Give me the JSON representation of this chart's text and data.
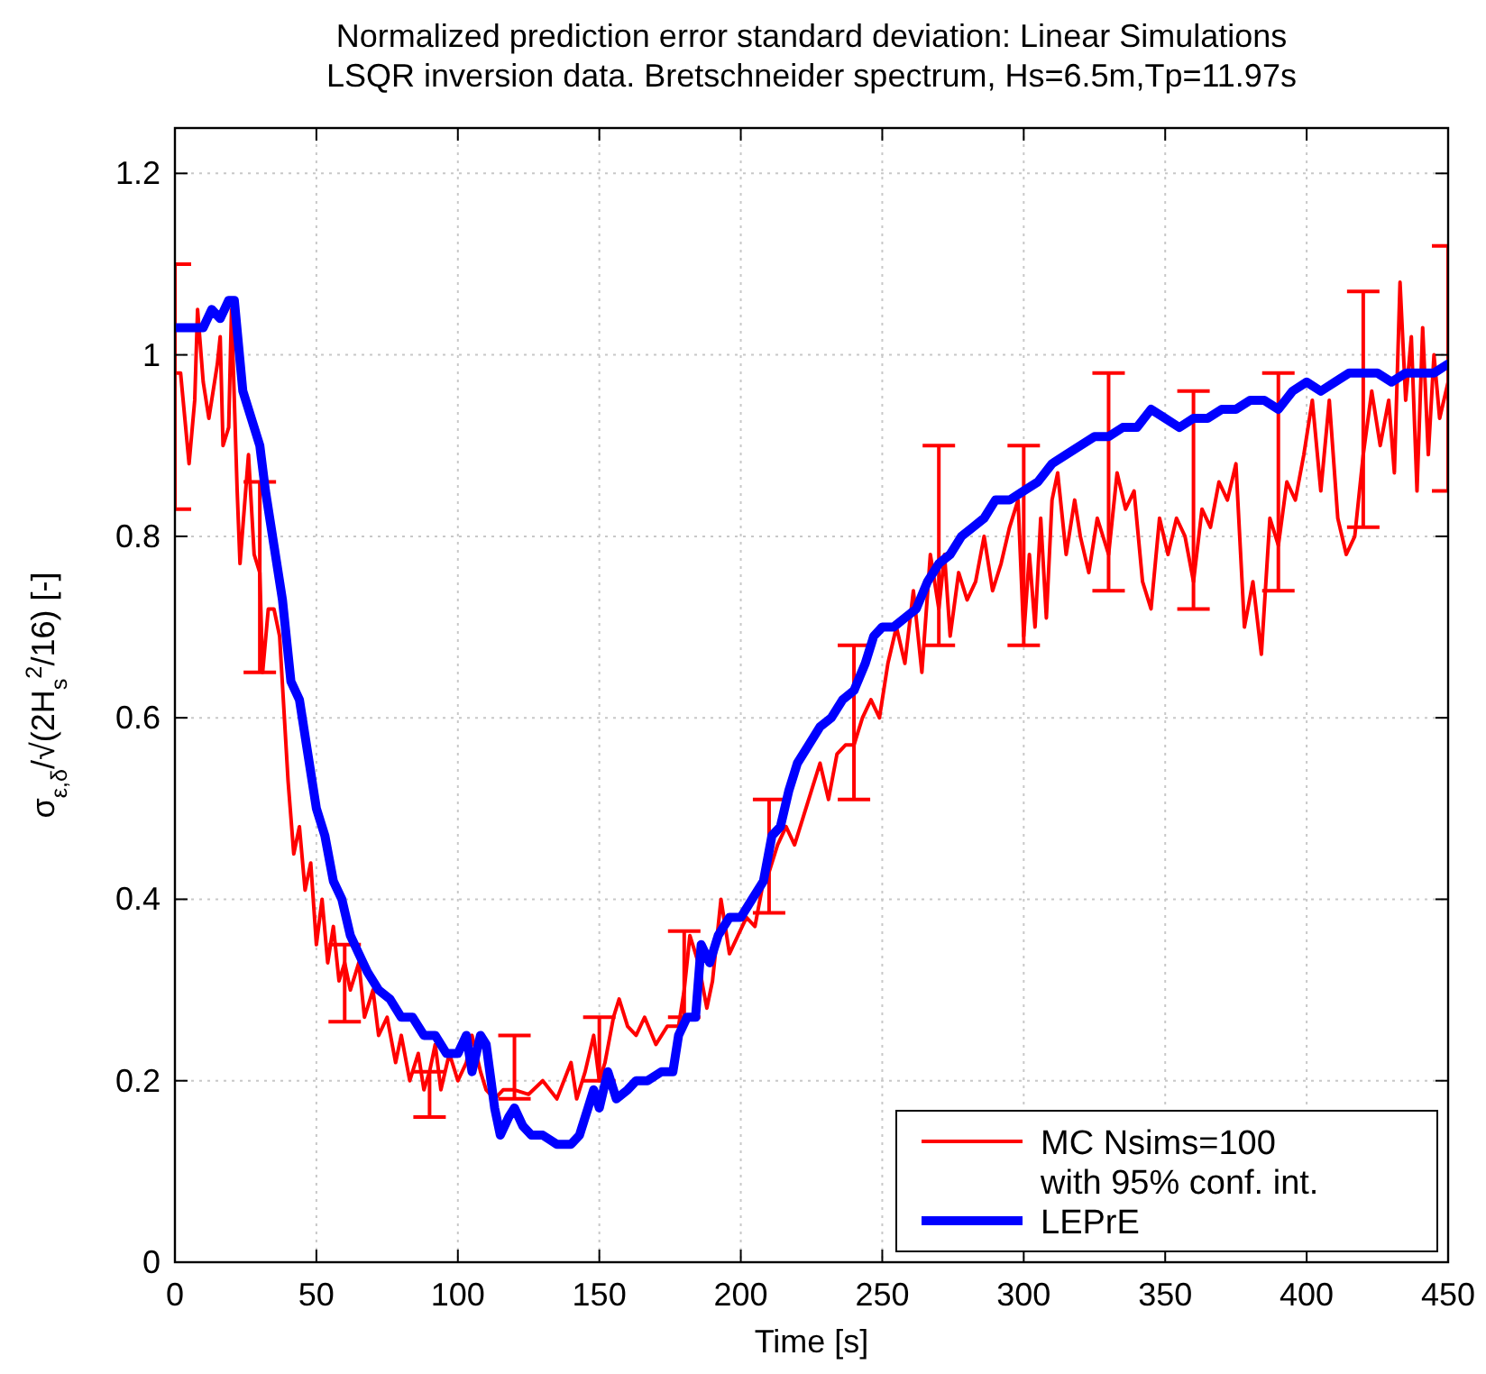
{
  "chart_data": {
    "type": "line",
    "title": "Normalized prediction error standard deviation: Linear Simulations\nLSQR inversion data. Bretschneider spectrum, Hs=6.5m,Tp=11.97s",
    "xlabel": "Time [s]",
    "ylabel": "σ$_{ε,δ}$/√(2H$_{s}$$^{2}$/16) [-]",
    "xlim": [
      0,
      450
    ],
    "ylim": [
      0,
      1.25
    ],
    "xticks": [
      0,
      50,
      100,
      150,
      200,
      250,
      300,
      350,
      400,
      450
    ],
    "yticks": [
      0,
      0.2,
      0.4,
      0.6,
      0.8,
      1,
      1.2
    ],
    "grid": true,
    "legend": "bottom right",
    "series": [
      {
        "name": "MC Nsims=100\nwith 95% conf. int.",
        "color": "#ff0000",
        "line_style": "solid",
        "x": [
          0,
          2,
          5,
          7,
          8,
          10,
          12,
          15,
          16,
          17,
          19,
          20,
          22,
          23,
          26,
          28,
          30,
          31,
          33,
          35,
          37,
          40,
          42,
          44,
          46,
          48,
          50,
          52,
          54,
          56,
          58,
          60,
          62,
          65,
          67,
          70,
          72,
          75,
          78,
          80,
          83,
          86,
          88,
          90,
          92,
          94,
          97,
          100,
          103,
          105,
          108,
          110,
          113,
          116,
          120,
          125,
          130,
          135,
          140,
          142,
          145,
          148,
          150,
          152,
          155,
          157,
          160,
          163,
          166,
          170,
          174,
          178,
          180,
          182,
          185,
          188,
          190,
          193,
          196,
          199,
          202,
          205,
          208,
          210,
          213,
          216,
          219,
          222,
          225,
          228,
          231,
          234,
          237,
          240,
          243,
          246,
          249,
          252,
          255,
          258,
          261,
          264,
          267,
          270,
          272,
          274,
          277,
          280,
          283,
          286,
          289,
          292,
          295,
          298,
          300,
          302,
          304,
          306,
          308,
          310,
          312,
          315,
          318,
          320,
          323,
          326,
          330,
          333,
          336,
          339,
          342,
          345,
          348,
          351,
          354,
          357,
          360,
          363,
          366,
          369,
          372,
          375,
          378,
          381,
          384,
          387,
          390,
          393,
          396,
          399,
          402,
          405,
          408,
          411,
          414,
          417,
          420,
          423,
          426,
          429,
          431,
          433,
          435,
          437,
          439,
          441,
          443,
          445,
          447,
          450
        ],
        "values": [
          0.98,
          0.98,
          0.88,
          0.95,
          1.05,
          0.97,
          0.93,
          0.99,
          1.02,
          0.9,
          0.92,
          1.05,
          0.85,
          0.77,
          0.89,
          0.78,
          0.76,
          0.65,
          0.72,
          0.72,
          0.69,
          0.53,
          0.45,
          0.48,
          0.41,
          0.44,
          0.35,
          0.4,
          0.33,
          0.37,
          0.31,
          0.33,
          0.3,
          0.33,
          0.27,
          0.3,
          0.25,
          0.27,
          0.22,
          0.25,
          0.2,
          0.23,
          0.19,
          0.21,
          0.24,
          0.19,
          0.23,
          0.2,
          0.22,
          0.25,
          0.21,
          0.19,
          0.18,
          0.19,
          0.19,
          0.185,
          0.2,
          0.18,
          0.22,
          0.18,
          0.21,
          0.25,
          0.2,
          0.22,
          0.27,
          0.29,
          0.26,
          0.25,
          0.27,
          0.24,
          0.26,
          0.26,
          0.3,
          0.36,
          0.33,
          0.28,
          0.31,
          0.4,
          0.34,
          0.36,
          0.38,
          0.37,
          0.42,
          0.43,
          0.46,
          0.48,
          0.46,
          0.49,
          0.52,
          0.55,
          0.51,
          0.56,
          0.57,
          0.57,
          0.6,
          0.62,
          0.6,
          0.66,
          0.7,
          0.66,
          0.74,
          0.65,
          0.78,
          0.72,
          0.78,
          0.69,
          0.76,
          0.73,
          0.75,
          0.8,
          0.74,
          0.77,
          0.81,
          0.84,
          0.69,
          0.78,
          0.7,
          0.82,
          0.71,
          0.84,
          0.87,
          0.78,
          0.84,
          0.8,
          0.76,
          0.82,
          0.78,
          0.87,
          0.83,
          0.85,
          0.75,
          0.72,
          0.82,
          0.78,
          0.82,
          0.8,
          0.75,
          0.83,
          0.81,
          0.86,
          0.84,
          0.88,
          0.7,
          0.75,
          0.67,
          0.82,
          0.79,
          0.86,
          0.84,
          0.89,
          0.95,
          0.85,
          0.95,
          0.82,
          0.78,
          0.8,
          0.89,
          0.96,
          0.9,
          0.95,
          0.87,
          1.08,
          0.95,
          1.02,
          0.85,
          1.03,
          0.89,
          1,
          0.93,
          0.97
        ],
        "errors": [
          [
            0.83,
            1.1
          ],
          null,
          null,
          null,
          null,
          null,
          null,
          null,
          null,
          null,
          null,
          null,
          null,
          null,
          null,
          null,
          [
            0.65,
            0.86
          ],
          null,
          null,
          null,
          null,
          null,
          null,
          null,
          null,
          null,
          null,
          null,
          null,
          null,
          null,
          [
            0.265,
            0.35
          ],
          null,
          null,
          null,
          null,
          null,
          null,
          null,
          null,
          null,
          null,
          null,
          [
            0.16,
            0.21
          ],
          null,
          null,
          null,
          null,
          null,
          null,
          null,
          null,
          null,
          null,
          [
            0.18,
            0.25
          ],
          null,
          null,
          null,
          null,
          null,
          null,
          null,
          [
            0.2,
            0.27
          ],
          null,
          null,
          null,
          null,
          null,
          null,
          null,
          null,
          null,
          [
            0.27,
            0.365
          ],
          null,
          null,
          null,
          null,
          null,
          null,
          null,
          null,
          null,
          null,
          [
            0.385,
            0.51
          ],
          null,
          null,
          null,
          null,
          null,
          null,
          null,
          null,
          null,
          [
            0.51,
            0.68
          ],
          null,
          null,
          null,
          null,
          null,
          null,
          null,
          null,
          null,
          [
            0.68,
            0.9
          ],
          null,
          null,
          null,
          null,
          null,
          null,
          null,
          null,
          null,
          null,
          [
            0.68,
            0.9
          ],
          null,
          null,
          null,
          null,
          null,
          null,
          null,
          null,
          null,
          null,
          null,
          [
            0.74,
            0.98
          ],
          null,
          null,
          null,
          null,
          null,
          null,
          null,
          null,
          null,
          [
            0.72,
            0.96
          ],
          null,
          null,
          null,
          null,
          null,
          null,
          null,
          null,
          null,
          [
            0.74,
            0.98
          ],
          null,
          null,
          null,
          null,
          null,
          null,
          null,
          null,
          null,
          [
            0.81,
            1.07
          ],
          null,
          null,
          null,
          null,
          null,
          null,
          null,
          null,
          null,
          null,
          null,
          null,
          [
            0.85,
            1.12
          ]
        ]
      },
      {
        "name": "LEPrE",
        "color": "#0000ff",
        "line_style": "solid",
        "x": [
          0,
          10,
          13,
          16,
          19,
          21,
          24,
          27,
          30,
          32,
          35,
          38,
          41,
          44,
          47,
          50,
          53,
          56,
          59,
          62,
          65,
          68,
          72,
          76,
          80,
          84,
          88,
          92,
          96,
          100,
          103,
          105,
          108,
          110,
          113,
          115,
          118,
          120,
          123,
          126,
          130,
          135,
          140,
          143,
          146,
          148,
          150,
          153,
          156,
          160,
          163,
          167,
          172,
          176,
          178,
          181,
          184,
          186,
          189,
          192,
          196,
          200,
          204,
          208,
          211,
          214,
          217,
          220,
          224,
          228,
          232,
          236,
          240,
          244,
          247,
          250,
          254,
          258,
          262,
          266,
          270,
          274,
          278,
          282,
          286,
          290,
          295,
          300,
          305,
          310,
          315,
          320,
          325,
          330,
          335,
          340,
          345,
          350,
          355,
          360,
          365,
          370,
          375,
          380,
          385,
          390,
          395,
          400,
          405,
          410,
          415,
          420,
          425,
          430,
          435,
          440,
          445,
          450
        ],
        "values": [
          1.03,
          1.03,
          1.05,
          1.04,
          1.06,
          1.06,
          0.96,
          0.93,
          0.9,
          0.85,
          0.79,
          0.73,
          0.64,
          0.62,
          0.56,
          0.5,
          0.47,
          0.42,
          0.4,
          0.36,
          0.34,
          0.32,
          0.3,
          0.29,
          0.27,
          0.27,
          0.25,
          0.25,
          0.23,
          0.23,
          0.25,
          0.21,
          0.25,
          0.24,
          0.17,
          0.14,
          0.16,
          0.17,
          0.15,
          0.14,
          0.14,
          0.13,
          0.13,
          0.14,
          0.17,
          0.19,
          0.17,
          0.21,
          0.18,
          0.19,
          0.2,
          0.2,
          0.21,
          0.21,
          0.25,
          0.27,
          0.27,
          0.35,
          0.33,
          0.36,
          0.38,
          0.38,
          0.4,
          0.42,
          0.47,
          0.48,
          0.52,
          0.55,
          0.57,
          0.59,
          0.6,
          0.62,
          0.63,
          0.66,
          0.69,
          0.7,
          0.7,
          0.71,
          0.72,
          0.75,
          0.77,
          0.78,
          0.8,
          0.81,
          0.82,
          0.84,
          0.84,
          0.85,
          0.86,
          0.88,
          0.89,
          0.9,
          0.91,
          0.91,
          0.92,
          0.92,
          0.94,
          0.93,
          0.92,
          0.93,
          0.93,
          0.94,
          0.94,
          0.95,
          0.95,
          0.94,
          0.96,
          0.97,
          0.96,
          0.97,
          0.98,
          0.98,
          0.98,
          0.97,
          0.98,
          0.98,
          0.98,
          0.99
        ]
      }
    ]
  }
}
